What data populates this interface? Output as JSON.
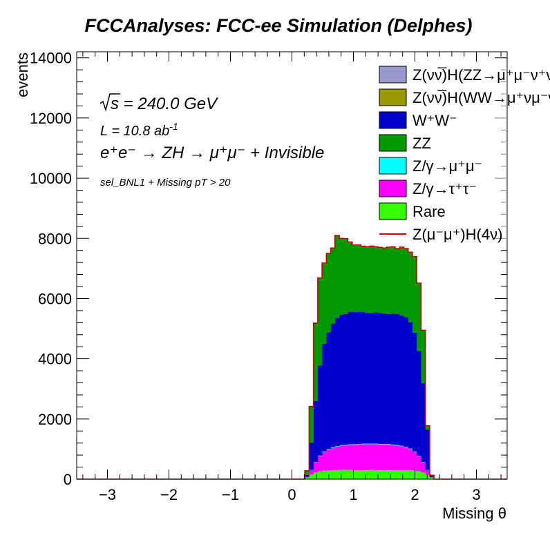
{
  "chart_data": {
    "type": "stacked-histogram",
    "title": "FCCAnalyses: FCC-ee Simulation (Delphes)",
    "xlabel": "Missing θ",
    "ylabel": "events",
    "xlim": [
      -3.5,
      3.5
    ],
    "ylim": [
      0,
      14200
    ],
    "x_ticks": [
      -3,
      -2,
      -1,
      0,
      1,
      2,
      3
    ],
    "x_tick_labels": [
      "−3",
      "−2",
      "−1",
      "0",
      "1",
      "2",
      "3"
    ],
    "y_ticks": [
      0,
      2000,
      4000,
      6000,
      8000,
      10000,
      12000,
      14000
    ],
    "y_tick_labels": [
      "0",
      "2000",
      "4000",
      "6000",
      "8000",
      "10000",
      "12000",
      "14000"
    ],
    "annotations": {
      "sqrt_s": "s = 240.0 GeV",
      "lumi_main": "L = 10.8 ab",
      "lumi_exp": "-1",
      "process": "e⁺e⁻ → ZH → μ⁺μ⁻ + Invisible",
      "selection": "sel_BNL1 + Missing pT > 20"
    },
    "legend_position": "top-right",
    "legend": [
      {
        "label": "Z(νν̅)H(ZZ→μ⁺μ⁻ν⁺ν⁻)",
        "color": "#9999cc",
        "type": "fill"
      },
      {
        "label": "Z(νν̅)H(WW→μ⁺νμ⁻ν)",
        "color": "#999900",
        "type": "fill"
      },
      {
        "label": "W⁺W⁻",
        "color": "#0000cc",
        "type": "fill"
      },
      {
        "label": "ZZ",
        "color": "#009900",
        "type": "fill"
      },
      {
        "label": "Z/γ→μ⁺μ⁻",
        "color": "#00ffff",
        "type": "fill"
      },
      {
        "label": "Z/γ→τ⁺τ⁻",
        "color": "#ff00ff",
        "type": "fill"
      },
      {
        "label": "Rare",
        "color": "#33ff00",
        "type": "fill"
      },
      {
        "label": "Z(μ⁻μ⁺)H(4ν)",
        "color": "#cc0000",
        "type": "line"
      }
    ],
    "bin_edges_start": 0.21,
    "bin_width": 0.07,
    "series": [
      {
        "name": "Rare",
        "color": "#33ff00",
        "values": [
          50,
          150,
          220,
          260,
          280,
          290,
          300,
          300,
          310,
          310,
          310,
          300,
          300,
          300,
          300,
          310,
          300,
          300,
          300,
          300,
          300,
          300,
          300,
          300,
          300,
          280,
          260,
          220,
          150,
          50
        ]
      },
      {
        "name": "Z/γ→τ⁺τ⁻",
        "color": "#ff00ff",
        "values": [
          30,
          150,
          340,
          510,
          620,
          690,
          740,
          780,
          800,
          810,
          830,
          840,
          850,
          860,
          860,
          850,
          860,
          850,
          850,
          850,
          830,
          810,
          790,
          750,
          700,
          620,
          510,
          340,
          150,
          20
        ]
      },
      {
        "name": "Z/γ→μ⁺μ⁻",
        "color": "#00ffff",
        "values": [
          0,
          5,
          10,
          15,
          20,
          20,
          20,
          20,
          20,
          20,
          20,
          20,
          20,
          20,
          20,
          20,
          20,
          20,
          20,
          20,
          20,
          20,
          20,
          20,
          20,
          15,
          10,
          10,
          5,
          0
        ]
      },
      {
        "name": "W⁺W⁻",
        "color": "#0000cc",
        "values": [
          60,
          900,
          2030,
          2990,
          3580,
          3880,
          4100,
          4260,
          4330,
          4350,
          4400,
          4390,
          4390,
          4370,
          4340,
          4340,
          4360,
          4350,
          4330,
          4320,
          4350,
          4360,
          4330,
          4310,
          4190,
          3950,
          3480,
          2620,
          1340,
          60
        ]
      },
      {
        "name": "ZZ",
        "color": "#009900",
        "values": [
          140,
          1200,
          2570,
          2890,
          2660,
          2600,
          2500,
          2720,
          2520,
          2480,
          2300,
          2210,
          2200,
          2170,
          2180,
          2200,
          2160,
          2160,
          2160,
          2200,
          2200,
          2150,
          2250,
          2260,
          2310,
          2510,
          2230,
          1740,
          120,
          0
        ]
      },
      {
        "name": "Z(νν̅)H(WW→μ⁺νμ⁻ν)",
        "color": "#999900",
        "values": [
          0,
          5,
          10,
          10,
          10,
          10,
          10,
          10,
          10,
          10,
          10,
          10,
          10,
          10,
          10,
          10,
          10,
          10,
          10,
          10,
          10,
          10,
          10,
          10,
          10,
          10,
          10,
          10,
          5,
          0
        ]
      },
      {
        "name": "Z(νν̅)H(ZZ→μ⁺μ⁻ν⁺ν⁻)",
        "color": "#9999cc",
        "values": [
          0,
          5,
          5,
          10,
          10,
          10,
          10,
          10,
          10,
          10,
          10,
          10,
          10,
          10,
          10,
          10,
          10,
          10,
          10,
          10,
          10,
          10,
          10,
          10,
          10,
          10,
          10,
          5,
          5,
          0
        ]
      }
    ],
    "signal_line": {
      "name": "Z(μ⁻μ⁺)H(4ν)",
      "color": "#cc0000",
      "follows": "stack-total"
    }
  }
}
